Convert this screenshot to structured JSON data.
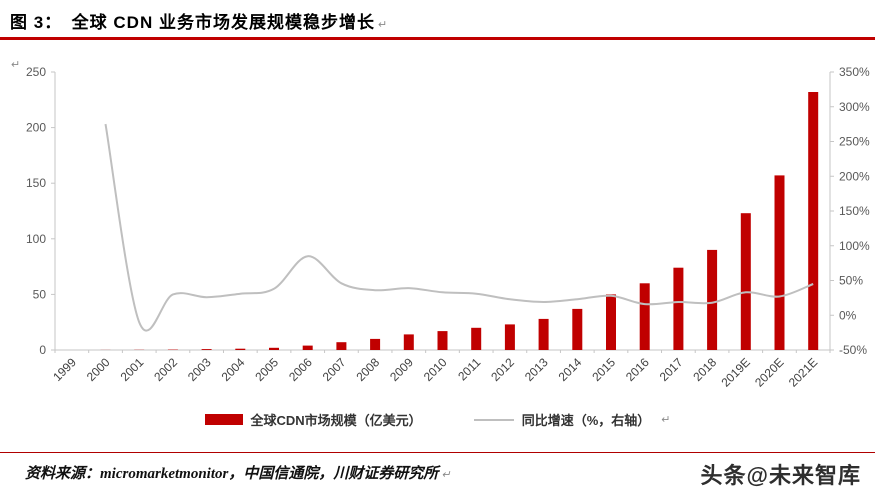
{
  "header": {
    "title": "图 3：　全球 CDN 业务市场发展规模稳步增长"
  },
  "marks": {
    "return_mark": "↵"
  },
  "chart_data": {
    "type": "bar",
    "subtype": "bar+line combo, dual axis",
    "categories": [
      "1999",
      "2000",
      "2001",
      "2002",
      "2003",
      "2004",
      "2005",
      "2006",
      "2007",
      "2008",
      "2009",
      "2010",
      "2011",
      "2012",
      "2013",
      "2014",
      "2015",
      "2016",
      "2017",
      "2018",
      "2019E",
      "2020E",
      "2021E"
    ],
    "series": [
      {
        "name": "全球CDN市场规模（亿美元）",
        "type": "bar",
        "axis": "left",
        "color": "#c00000",
        "values": [
          0,
          0.1,
          0.2,
          0.4,
          0.8,
          1.2,
          2,
          4,
          7,
          10,
          14,
          17,
          20,
          23,
          28,
          37,
          50,
          60,
          74,
          90,
          123,
          157,
          232
        ]
      },
      {
        "name": "同比增速（%，右轴）",
        "type": "line",
        "axis": "right",
        "color": "#bfbfbf",
        "values": [
          null,
          275,
          -10,
          30,
          26,
          31,
          38,
          85,
          46,
          36,
          39,
          33,
          31,
          23,
          19,
          23,
          28,
          16,
          19,
          18,
          33,
          27,
          45
        ]
      }
    ],
    "left_axis": {
      "min": 0,
      "max": 250,
      "step": 50,
      "tick_labels": [
        "0",
        "50",
        "100",
        "150",
        "200",
        "250"
      ]
    },
    "right_axis": {
      "min": -50,
      "max": 350,
      "step": 50,
      "tick_labels": [
        "-50%",
        "0%",
        "50%",
        "100%",
        "150%",
        "200%",
        "250%",
        "300%",
        "350%"
      ]
    },
    "grid": false,
    "legend_position": "bottom",
    "title": "全球 CDN 业务市场发展规模稳步增长"
  },
  "footer": {
    "source": "资料来源：micromarketmonitor，中国信通院，川财证券研究所",
    "watermark": "头条@未来智库"
  }
}
